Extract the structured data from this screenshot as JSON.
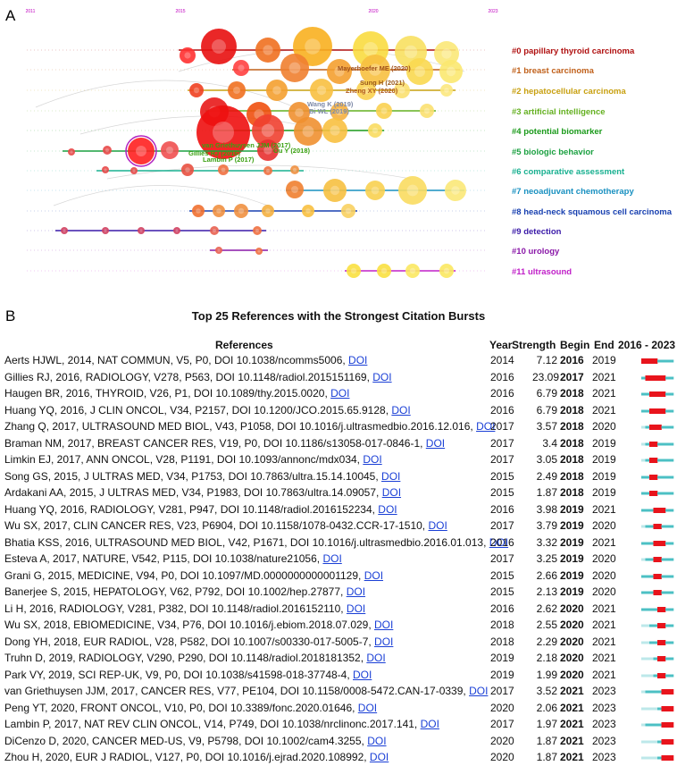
{
  "panel_a": {
    "letter": "A",
    "axis_years": [
      "2011",
      "2015",
      "2020",
      "2023"
    ],
    "clusters": [
      {
        "label": "#0 papillary thyroid carcinoma",
        "color": "#b01010"
      },
      {
        "label": "#1 breast carcinoma",
        "color": "#c0601a"
      },
      {
        "label": "#2 hepatocellular carcinoma",
        "color": "#c8a010"
      },
      {
        "label": "#3 artificial intelligence",
        "color": "#64b020"
      },
      {
        "label": "#4 potential biomarker",
        "color": "#1a9a1a"
      },
      {
        "label": "#5 biologic behavior",
        "color": "#1aa040"
      },
      {
        "label": "#6 comparative assessment",
        "color": "#18b090"
      },
      {
        "label": "#7 neoadjuvant chemotherapy",
        "color": "#1890c0"
      },
      {
        "label": "#8 head-neck squamous cell carcinoma",
        "color": "#1840b0"
      },
      {
        "label": "#9 detection",
        "color": "#3a1aa8"
      },
      {
        "label": "#10 urology",
        "color": "#8a18a8"
      },
      {
        "label": "#11 ultrasound",
        "color": "#c020c8"
      }
    ],
    "node_labels": [
      {
        "text": "Mayerhoefer ME (2020)",
        "color": "#a0501a"
      },
      {
        "text": "Sung H (2021)",
        "color": "#9a5a1a"
      },
      {
        "text": "Zheng XY (2020)",
        "color": "#b05a20"
      },
      {
        "text": "Wang K (2019)",
        "color": "#7e8aa8"
      },
      {
        "text": "Bi WL (2019)",
        "color": "#7e8aa8"
      },
      {
        "text": "van Griethuysen JJM (2017)",
        "color": "#3aa010"
      },
      {
        "text": "Gillies RJ (2016)",
        "color": "#3aa010"
      },
      {
        "text": "Lambin P (2017)",
        "color": "#3aa010"
      },
      {
        "text": "Ou Y (2018)",
        "color": "#3aa010"
      }
    ]
  },
  "panel_b": {
    "letter": "B",
    "title": "Top 25 References with the Strongest Citation Bursts",
    "headers": {
      "references": "References",
      "year": "Year",
      "strength": "Strength",
      "begin": "Begin",
      "end": "End",
      "range": "2016 - 2023"
    },
    "colors": {
      "burst": "#e8141c",
      "active": "#4cc0c4",
      "inactive": "#bde8ea"
    },
    "chart_data": {
      "type": "table",
      "x_range": [
        2016,
        2023
      ],
      "rows": [
        {
          "pre": "Aerts HJWL, 2014, NAT COMMUN, V5, P0, DOI 10.1038/ncomms5006, ",
          "doi": "DOI",
          "year": 2014,
          "strength": "7.12",
          "begin": 2016,
          "end": 2019
        },
        {
          "pre": "Gillies RJ, 2016, RADIOLOGY, V278, P563, DOI 10.1148/radiol.2015151169, ",
          "doi": "DOI",
          "year": 2016,
          "strength": "23.09",
          "begin": 2017,
          "end": 2021
        },
        {
          "pre": "Haugen BR, 2016, THYROID, V26, P1, DOI 10.1089/thy.2015.0020, ",
          "doi": "DOI",
          "year": 2016,
          "strength": "6.79",
          "begin": 2018,
          "end": 2021
        },
        {
          "pre": "Huang YQ, 2016, J CLIN ONCOL, V34, P2157, DOI 10.1200/JCO.2015.65.9128, ",
          "doi": "DOI",
          "year": 2016,
          "strength": "6.79",
          "begin": 2018,
          "end": 2021
        },
        {
          "pre": "Zhang Q, 2017, ULTRASOUND MED BIOL, V43, P1058, DOI 10.1016/j.ultrasmedbio.2016.12.016, ",
          "doi": "DOI",
          "year": 2017,
          "strength": "3.57",
          "begin": 2018,
          "end": 2020
        },
        {
          "pre": "Braman NM, 2017, BREAST CANCER RES, V19, P0, DOI 10.1186/s13058-017-0846-1, ",
          "doi": "DOI",
          "year": 2017,
          "strength": "3.4",
          "begin": 2018,
          "end": 2019
        },
        {
          "pre": "Limkin EJ, 2017, ANN ONCOL, V28, P1191, DOI 10.1093/annonc/mdx034, ",
          "doi": "DOI",
          "year": 2017,
          "strength": "3.05",
          "begin": 2018,
          "end": 2019
        },
        {
          "pre": "Song GS, 2015, J ULTRAS MED, V34, P1753, DOI 10.7863/ultra.15.14.10045, ",
          "doi": "DOI",
          "year": 2015,
          "strength": "2.49",
          "begin": 2018,
          "end": 2019
        },
        {
          "pre": "Ardakani AA, 2015, J ULTRAS MED, V34, P1983, DOI 10.7863/ultra.14.09057, ",
          "doi": "DOI",
          "year": 2015,
          "strength": "1.87",
          "begin": 2018,
          "end": 2019
        },
        {
          "pre": "Huang YQ, 2016, RADIOLOGY, V281, P947, DOI 10.1148/radiol.2016152234, ",
          "doi": "DOI",
          "year": 2016,
          "strength": "3.98",
          "begin": 2019,
          "end": 2021
        },
        {
          "pre": "Wu SX, 2017, CLIN CANCER RES, V23, P6904, DOI 10.1158/1078-0432.CCR-17-1510, ",
          "doi": "DOI",
          "year": 2017,
          "strength": "3.79",
          "begin": 2019,
          "end": 2020
        },
        {
          "pre": "Bhatia KSS, 2016, ULTRASOUND MED BIOL, V42, P1671, DOI 10.1016/j.ultrasmedbio.2016.01.013, ",
          "doi": "DOI",
          "year": 2016,
          "strength": "3.32",
          "begin": 2019,
          "end": 2021
        },
        {
          "pre": "Esteva A, 2017, NATURE, V542, P115, DOI 10.1038/nature21056, ",
          "doi": "DOI",
          "year": 2017,
          "strength": "3.25",
          "begin": 2019,
          "end": 2020
        },
        {
          "pre": "Grani G, 2015, MEDICINE, V94, P0, DOI 10.1097/MD.0000000000001129, ",
          "doi": "DOI",
          "year": 2015,
          "strength": "2.66",
          "begin": 2019,
          "end": 2020
        },
        {
          "pre": "Banerjee S, 2015, HEPATOLOGY, V62, P792, DOI 10.1002/hep.27877, ",
          "doi": "DOI",
          "year": 2015,
          "strength": "2.13",
          "begin": 2019,
          "end": 2020
        },
        {
          "pre": "Li H, 2016, RADIOLOGY, V281, P382, DOI 10.1148/radiol.2016152110, ",
          "doi": "DOI",
          "year": 2016,
          "strength": "2.62",
          "begin": 2020,
          "end": 2021
        },
        {
          "pre": "Wu SX, 2018, EBIOMEDICINE, V34, P76, DOI 10.1016/j.ebiom.2018.07.029, ",
          "doi": "DOI",
          "year": 2018,
          "strength": "2.55",
          "begin": 2020,
          "end": 2021
        },
        {
          "pre": "Dong YH, 2018, EUR RADIOL, V28, P582, DOI 10.1007/s00330-017-5005-7, ",
          "doi": "DOI",
          "year": 2018,
          "strength": "2.29",
          "begin": 2020,
          "end": 2021
        },
        {
          "pre": "Truhn D, 2019, RADIOLOGY, V290, P290, DOI 10.1148/radiol.2018181352, ",
          "doi": "DOI",
          "year": 2019,
          "strength": "2.18",
          "begin": 2020,
          "end": 2021
        },
        {
          "pre": "Park VY, 2019, SCI REP-UK, V9, P0, DOI 10.1038/s41598-018-37748-4, ",
          "doi": "DOI",
          "year": 2019,
          "strength": "1.99",
          "begin": 2020,
          "end": 2021
        },
        {
          "pre": "van Griethuysen JJM, 2017, CANCER RES, V77, PE104, DOI 10.1158/0008-5472.CAN-17-0339, ",
          "doi": "DOI",
          "year": 2017,
          "strength": "3.52",
          "begin": 2021,
          "end": 2023
        },
        {
          "pre": "Peng YT, 2020, FRONT ONCOL, V10, P0, DOI 10.3389/fonc.2020.01646, ",
          "doi": "DOI",
          "year": 2020,
          "strength": "2.06",
          "begin": 2021,
          "end": 2023
        },
        {
          "pre": "Lambin P, 2017, NAT REV CLIN ONCOL, V14, P749, DOI 10.1038/nrclinonc.2017.141, ",
          "doi": "DOI",
          "year": 2017,
          "strength": "1.97",
          "begin": 2021,
          "end": 2023
        },
        {
          "pre": "DiCenzo D, 2020, CANCER MED-US, V9, P5798, DOI 10.1002/cam4.3255, ",
          "doi": "DOI",
          "year": 2020,
          "strength": "1.87",
          "begin": 2021,
          "end": 2023
        },
        {
          "pre": "Zhou H, 2020, EUR J RADIOL, V127, P0, DOI 10.1016/j.ejrad.2020.108992, ",
          "doi": "DOI",
          "year": 2020,
          "strength": "1.87",
          "begin": 2021,
          "end": 2023
        }
      ]
    }
  }
}
